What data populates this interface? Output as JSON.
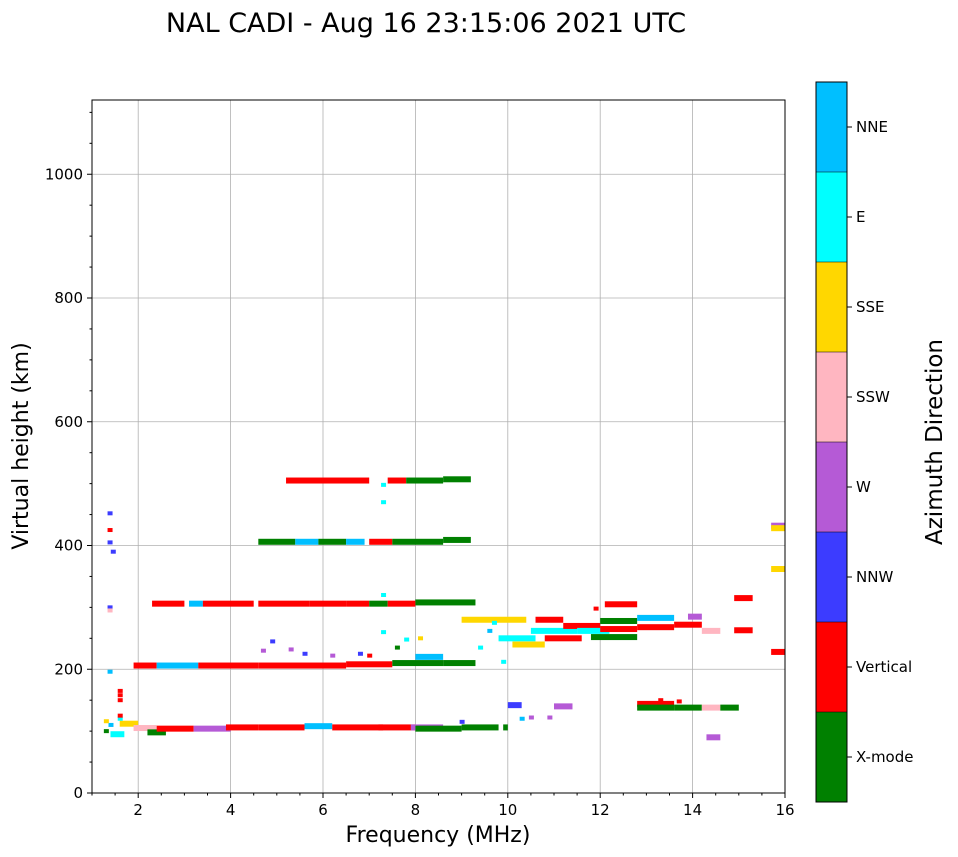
{
  "chart_data": {
    "type": "scatter",
    "title": "NAL CADI - Aug 16 23:15:06 2021 UTC",
    "xlabel": "Frequency (MHz)",
    "ylabel": "Virtual height (km)",
    "xlim": [
      1,
      16
    ],
    "ylim": [
      0,
      1120
    ],
    "xticks": [
      2,
      4,
      6,
      8,
      10,
      12,
      14,
      16
    ],
    "yticks": [
      0,
      200,
      400,
      600,
      800,
      1000
    ],
    "grid": true,
    "colorbar": {
      "title": "Azimuth Direction",
      "categories": [
        {
          "label": "X-mode",
          "color": "#008000"
        },
        {
          "label": "Vertical",
          "color": "#ff0000"
        },
        {
          "label": "NNW",
          "color": "#3c3cff"
        },
        {
          "label": "W",
          "color": "#b55ad6"
        },
        {
          "label": "SSW",
          "color": "#ffb6c1"
        },
        {
          "label": "SSE",
          "color": "#ffd700"
        },
        {
          "label": "E",
          "color": "#00ffff"
        },
        {
          "label": "NNE",
          "color": "#00bfff"
        }
      ]
    },
    "echo_segments": [
      {
        "x0": 5.2,
        "x1": 7.0,
        "y": 505,
        "c": "Vertical"
      },
      {
        "x0": 7.4,
        "x1": 7.8,
        "y": 505,
        "c": "Vertical"
      },
      {
        "x0": 7.8,
        "x1": 8.6,
        "y": 505,
        "c": "X-mode"
      },
      {
        "x0": 8.6,
        "x1": 9.2,
        "y": 507,
        "c": "X-mode"
      },
      {
        "x0": 4.6,
        "x1": 5.4,
        "y": 406,
        "c": "X-mode"
      },
      {
        "x0": 5.4,
        "x1": 5.9,
        "y": 406,
        "c": "NNE"
      },
      {
        "x0": 5.9,
        "x1": 6.5,
        "y": 406,
        "c": "X-mode"
      },
      {
        "x0": 6.5,
        "x1": 6.9,
        "y": 406,
        "c": "NNE"
      },
      {
        "x0": 7.0,
        "x1": 7.5,
        "y": 406,
        "c": "Vertical"
      },
      {
        "x0": 7.5,
        "x1": 8.6,
        "y": 406,
        "c": "X-mode"
      },
      {
        "x0": 8.6,
        "x1": 9.2,
        "y": 409,
        "c": "X-mode"
      },
      {
        "x0": 2.3,
        "x1": 3.0,
        "y": 306,
        "c": "Vertical"
      },
      {
        "x0": 3.1,
        "x1": 3.4,
        "y": 306,
        "c": "NNE"
      },
      {
        "x0": 3.4,
        "x1": 4.5,
        "y": 306,
        "c": "Vertical"
      },
      {
        "x0": 4.6,
        "x1": 5.7,
        "y": 306,
        "c": "Vertical"
      },
      {
        "x0": 5.7,
        "x1": 6.5,
        "y": 306,
        "c": "Vertical"
      },
      {
        "x0": 6.5,
        "x1": 7.0,
        "y": 306,
        "c": "Vertical"
      },
      {
        "x0": 7.0,
        "x1": 7.4,
        "y": 306,
        "c": "X-mode"
      },
      {
        "x0": 7.4,
        "x1": 8.0,
        "y": 306,
        "c": "Vertical"
      },
      {
        "x0": 8.0,
        "x1": 9.3,
        "y": 308,
        "c": "X-mode"
      },
      {
        "x0": 1.9,
        "x1": 2.4,
        "y": 206,
        "c": "Vertical"
      },
      {
        "x0": 2.4,
        "x1": 3.3,
        "y": 206,
        "c": "NNE"
      },
      {
        "x0": 3.3,
        "x1": 4.6,
        "y": 206,
        "c": "Vertical"
      },
      {
        "x0": 4.6,
        "x1": 6.5,
        "y": 206,
        "c": "Vertical"
      },
      {
        "x0": 6.5,
        "x1": 7.5,
        "y": 208,
        "c": "Vertical"
      },
      {
        "x0": 7.5,
        "x1": 8.6,
        "y": 210,
        "c": "X-mode"
      },
      {
        "x0": 8.0,
        "x1": 8.6,
        "y": 220,
        "c": "NNE"
      },
      {
        "x0": 8.6,
        "x1": 9.3,
        "y": 210,
        "c": "X-mode"
      },
      {
        "x0": 1.4,
        "x1": 1.7,
        "y": 95,
        "c": "E"
      },
      {
        "x0": 1.6,
        "x1": 2.0,
        "y": 112,
        "c": "SSE"
      },
      {
        "x0": 1.9,
        "x1": 2.4,
        "y": 105,
        "c": "SSW"
      },
      {
        "x0": 2.2,
        "x1": 2.6,
        "y": 98,
        "c": "X-mode"
      },
      {
        "x0": 2.4,
        "x1": 3.2,
        "y": 104,
        "c": "Vertical"
      },
      {
        "x0": 3.2,
        "x1": 4.0,
        "y": 104,
        "c": "W"
      },
      {
        "x0": 3.9,
        "x1": 4.6,
        "y": 106,
        "c": "Vertical"
      },
      {
        "x0": 4.6,
        "x1": 5.6,
        "y": 106,
        "c": "Vertical"
      },
      {
        "x0": 5.6,
        "x1": 6.2,
        "y": 108,
        "c": "NNE"
      },
      {
        "x0": 6.2,
        "x1": 7.3,
        "y": 106,
        "c": "Vertical"
      },
      {
        "x0": 7.2,
        "x1": 8.0,
        "y": 106,
        "c": "Vertical"
      },
      {
        "x0": 7.9,
        "x1": 8.6,
        "y": 106,
        "c": "W"
      },
      {
        "x0": 8.0,
        "x1": 9.0,
        "y": 104,
        "c": "X-mode"
      },
      {
        "x0": 9.0,
        "x1": 9.8,
        "y": 106,
        "c": "X-mode"
      },
      {
        "x0": 9.9,
        "x1": 10.0,
        "y": 106,
        "c": "X-mode"
      },
      {
        "x0": 9.0,
        "x1": 10.4,
        "y": 280,
        "c": "SSE"
      },
      {
        "x0": 9.8,
        "x1": 10.6,
        "y": 250,
        "c": "E"
      },
      {
        "x0": 10.1,
        "x1": 10.8,
        "y": 240,
        "c": "SSE"
      },
      {
        "x0": 10.5,
        "x1": 11.5,
        "y": 262,
        "c": "E"
      },
      {
        "x0": 10.6,
        "x1": 11.2,
        "y": 280,
        "c": "Vertical"
      },
      {
        "x0": 10.8,
        "x1": 11.6,
        "y": 250,
        "c": "Vertical"
      },
      {
        "x0": 11.2,
        "x1": 12.0,
        "y": 270,
        "c": "Vertical"
      },
      {
        "x0": 11.5,
        "x1": 12.2,
        "y": 262,
        "c": "E"
      },
      {
        "x0": 11.8,
        "x1": 12.8,
        "y": 252,
        "c": "X-mode"
      },
      {
        "x0": 12.0,
        "x1": 12.8,
        "y": 265,
        "c": "Vertical"
      },
      {
        "x0": 12.0,
        "x1": 12.8,
        "y": 278,
        "c": "X-mode"
      },
      {
        "x0": 12.1,
        "x1": 12.8,
        "y": 305,
        "c": "Vertical"
      },
      {
        "x0": 12.8,
        "x1": 13.6,
        "y": 268,
        "c": "Vertical"
      },
      {
        "x0": 12.8,
        "x1": 13.6,
        "y": 283,
        "c": "NNE"
      },
      {
        "x0": 13.6,
        "x1": 14.2,
        "y": 272,
        "c": "Vertical"
      },
      {
        "x0": 13.9,
        "x1": 14.2,
        "y": 285,
        "c": "W"
      },
      {
        "x0": 14.2,
        "x1": 14.6,
        "y": 262,
        "c": "SSW"
      },
      {
        "x0": 14.9,
        "x1": 15.3,
        "y": 263,
        "c": "Vertical"
      },
      {
        "x0": 14.9,
        "x1": 15.3,
        "y": 315,
        "c": "Vertical"
      },
      {
        "x0": 12.8,
        "x1": 13.6,
        "y": 144,
        "c": "Vertical"
      },
      {
        "x0": 12.8,
        "x1": 13.6,
        "y": 138,
        "c": "X-mode"
      },
      {
        "x0": 13.6,
        "x1": 14.2,
        "y": 138,
        "c": "X-mode"
      },
      {
        "x0": 14.2,
        "x1": 14.6,
        "y": 138,
        "c": "SSW"
      },
      {
        "x0": 14.6,
        "x1": 15.0,
        "y": 138,
        "c": "X-mode"
      },
      {
        "x0": 10.0,
        "x1": 10.3,
        "y": 142,
        "c": "NNW"
      },
      {
        "x0": 11.0,
        "x1": 11.4,
        "y": 140,
        "c": "W"
      },
      {
        "x0": 14.3,
        "x1": 14.6,
        "y": 90,
        "c": "W"
      },
      {
        "x0": 15.7,
        "x1": 16.0,
        "y": 432,
        "c": "W"
      },
      {
        "x0": 15.7,
        "x1": 16.0,
        "y": 428,
        "c": "SSE"
      },
      {
        "x0": 15.7,
        "x1": 16.0,
        "y": 362,
        "c": "SSE"
      },
      {
        "x0": 15.7,
        "x1": 16.0,
        "y": 228,
        "c": "Vertical"
      }
    ],
    "echo_points": [
      {
        "x": 1.38,
        "y": 452,
        "c": "NNW"
      },
      {
        "x": 1.38,
        "y": 425,
        "c": "Vertical"
      },
      {
        "x": 1.38,
        "y": 405,
        "c": "NNW"
      },
      {
        "x": 1.45,
        "y": 390,
        "c": "NNW"
      },
      {
        "x": 1.38,
        "y": 300,
        "c": "NNW"
      },
      {
        "x": 1.38,
        "y": 295,
        "c": "SSW"
      },
      {
        "x": 1.38,
        "y": 196,
        "c": "NNE"
      },
      {
        "x": 1.6,
        "y": 165,
        "c": "Vertical"
      },
      {
        "x": 1.6,
        "y": 150,
        "c": "Vertical"
      },
      {
        "x": 1.6,
        "y": 158,
        "c": "Vertical"
      },
      {
        "x": 1.6,
        "y": 120,
        "c": "E"
      },
      {
        "x": 1.6,
        "y": 125,
        "c": "Vertical"
      },
      {
        "x": 1.3,
        "y": 100,
        "c": "X-mode"
      },
      {
        "x": 1.4,
        "y": 110,
        "c": "NNE"
      },
      {
        "x": 1.3,
        "y": 116,
        "c": "SSE"
      },
      {
        "x": 7.3,
        "y": 470,
        "c": "E"
      },
      {
        "x": 7.3,
        "y": 498,
        "c": "E"
      },
      {
        "x": 7.3,
        "y": 320,
        "c": "E"
      },
      {
        "x": 7.3,
        "y": 260,
        "c": "E"
      },
      {
        "x": 7.6,
        "y": 235,
        "c": "X-mode"
      },
      {
        "x": 7.8,
        "y": 248,
        "c": "E"
      },
      {
        "x": 8.1,
        "y": 250,
        "c": "SSE"
      },
      {
        "x": 4.9,
        "y": 245,
        "c": "NNW"
      },
      {
        "x": 4.7,
        "y": 230,
        "c": "W"
      },
      {
        "x": 5.3,
        "y": 232,
        "c": "W"
      },
      {
        "x": 5.6,
        "y": 225,
        "c": "NNW"
      },
      {
        "x": 6.2,
        "y": 222,
        "c": "W"
      },
      {
        "x": 6.8,
        "y": 225,
        "c": "NNW"
      },
      {
        "x": 7.0,
        "y": 222,
        "c": "Vertical"
      },
      {
        "x": 9.4,
        "y": 235,
        "c": "E"
      },
      {
        "x": 9.6,
        "y": 262,
        "c": "NNE"
      },
      {
        "x": 9.7,
        "y": 275,
        "c": "E"
      },
      {
        "x": 10.3,
        "y": 120,
        "c": "NNE"
      },
      {
        "x": 10.5,
        "y": 122,
        "c": "W"
      },
      {
        "x": 10.9,
        "y": 122,
        "c": "W"
      },
      {
        "x": 9.0,
        "y": 115,
        "c": "NNW"
      },
      {
        "x": 9.9,
        "y": 212,
        "c": "E"
      },
      {
        "x": 11.9,
        "y": 298,
        "c": "Vertical"
      },
      {
        "x": 13.3,
        "y": 150,
        "c": "Vertical"
      },
      {
        "x": 13.7,
        "y": 148,
        "c": "Vertical"
      }
    ]
  }
}
